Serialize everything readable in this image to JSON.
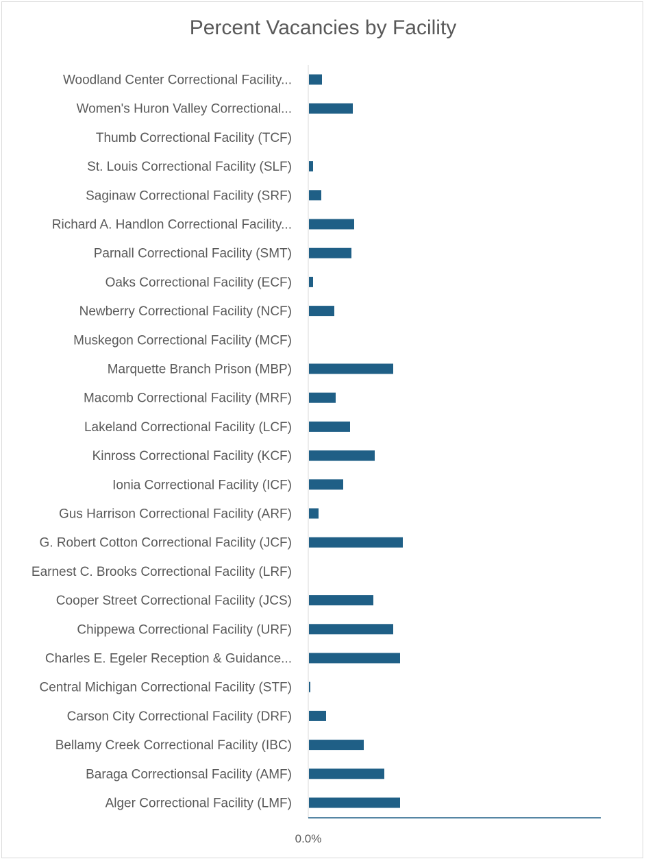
{
  "chart_data": {
    "type": "bar",
    "orientation": "horizontal",
    "title": "Percent Vacancies by Facility",
    "xlabel": "",
    "ylabel": "",
    "x_tick_labels": [
      "0.0%"
    ],
    "bar_color": "#1f5f86",
    "categories": [
      "Woodland Center Correctional Facility...",
      "Women's Huron Valley Correctional...",
      "Thumb Correctional Facility (TCF)",
      "St. Louis Correctional Facility (SLF)",
      "Saginaw Correctional Facility (SRF)",
      "Richard A. Handlon Correctional Facility...",
      "Parnall Correctional Facility (SMT)",
      "Oaks Correctional Facility (ECF)",
      "Newberry Correctional Facility (NCF)",
      "Muskegon Correctional Facility (MCF)",
      "Marquette Branch Prison (MBP)",
      "Macomb Correctional Facility (MRF)",
      "Lakeland Correctional Facility (LCF)",
      "Kinross Correctional Facility (KCF)",
      "Ionia Correctional Facility (ICF)",
      "Gus Harrison Correctional Facility (ARF)",
      "G. Robert Cotton Correctional Facility (JCF)",
      "Earnest C. Brooks Correctional Facility (LRF)",
      "Cooper Street Correctional Facility (JCS)",
      "Chippewa Correctional Facility (URF)",
      "Charles E. Egeler Reception & Guidance...",
      "Central Michigan Correctional Facility (STF)",
      "Carson City Correctional Facility (DRF)",
      "Bellamy Creek Correctional Facility (IBC)",
      "Baraga Correctionsal Facility (AMF)",
      "Alger Correctional Facility (LMF)"
    ],
    "values": [
      19,
      64,
      0,
      6,
      18,
      66,
      62,
      6,
      37,
      0,
      123,
      39,
      60,
      96,
      50,
      14,
      137,
      0,
      94,
      123,
      133,
      2,
      25,
      80,
      110,
      133
    ],
    "value_unit": "relative bar length (axis max = 427)",
    "xlim": [
      0,
      427
    ],
    "grid": false,
    "legend": "none"
  }
}
